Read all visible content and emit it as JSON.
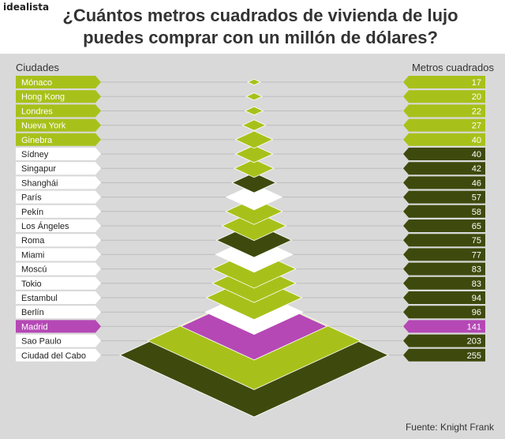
{
  "brand": "idealista",
  "title_line1": "¿Cuántos metros cuadrados de vivienda de lujo",
  "title_line2": "puedes comprar con un millón de dólares?",
  "left_header": "Ciudades",
  "right_header": "Metros cuadrados",
  "source": "Fuente: Knight Frank",
  "colors": {
    "lime": "#a8c11a",
    "lime_light": "#c3d63a",
    "dark": "#3e4a0d",
    "white": "#ffffff",
    "magenta": "#b548b5",
    "background": "#d9d9d9"
  },
  "chart_data": {
    "type": "bar",
    "categories": [
      "Mónaco",
      "Hong Kong",
      "Londres",
      "Nueva York",
      "Ginebra",
      "Sídney",
      "Singapur",
      "Shanghái",
      "París",
      "Pekín",
      "Los Ángeles",
      "Roma",
      "Miami",
      "Moscú",
      "Tokio",
      "Estambul",
      "Berlín",
      "Madrid",
      "Sao Paulo",
      "Ciudad del Cabo"
    ],
    "values": [
      17,
      20,
      22,
      27,
      40,
      40,
      42,
      46,
      57,
      58,
      65,
      75,
      77,
      83,
      83,
      94,
      96,
      141,
      203,
      255
    ],
    "label_style": [
      "lime",
      "lime",
      "lime",
      "lime",
      "lime",
      "white",
      "white",
      "white",
      "white",
      "white",
      "white",
      "white",
      "white",
      "white",
      "white",
      "white",
      "white",
      "magenta",
      "white",
      "white"
    ],
    "value_style": [
      "lime",
      "lime",
      "lime",
      "lime",
      "lime",
      "dark",
      "dark",
      "dark",
      "dark",
      "dark",
      "dark",
      "dark",
      "dark",
      "dark",
      "dark",
      "dark",
      "dark",
      "magenta",
      "dark",
      "dark"
    ],
    "diamond_style": [
      "lime",
      "lime",
      "lime",
      "lime",
      "lime",
      "lime",
      "lime",
      "dark",
      "white",
      "lime",
      "lime",
      "dark",
      "white",
      "lime",
      "lime",
      "lime",
      "white",
      "magenta",
      "lime",
      "dark"
    ],
    "xlabel": "Ciudades",
    "ylabel": "Metros cuadrados"
  }
}
